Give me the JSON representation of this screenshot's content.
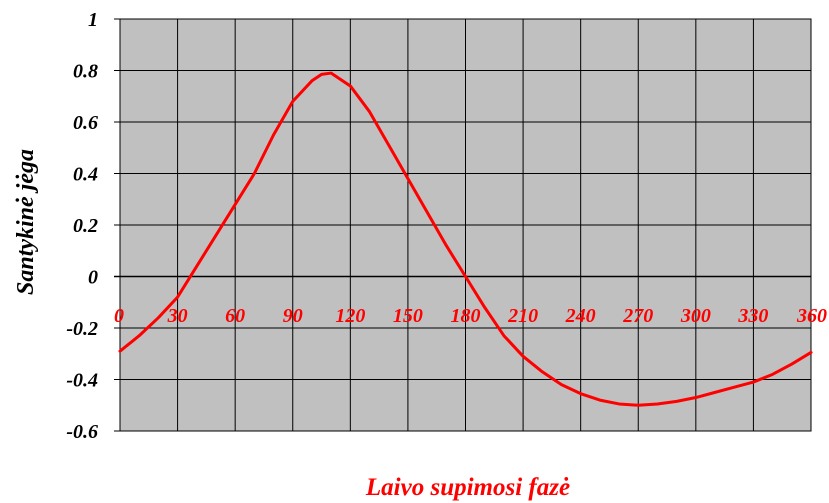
{
  "chart_data": {
    "type": "line",
    "title": "",
    "xlabel": "Laivo supimosi fazė",
    "ylabel": "Santykinė jėga",
    "xlim": [
      0,
      360
    ],
    "ylim": [
      -0.6,
      1
    ],
    "x_ticks": [
      "0",
      "30",
      "60",
      "90",
      "120",
      "150",
      "180",
      "210",
      "240",
      "270",
      "300",
      "330",
      "360"
    ],
    "y_ticks": [
      "1",
      "0.8",
      "0.6",
      "0.4",
      "0.2",
      "0",
      "-0.2",
      "-0.4",
      "-0.6"
    ],
    "x_tick_values": [
      0,
      30,
      60,
      90,
      120,
      150,
      180,
      210,
      240,
      270,
      300,
      330,
      360
    ],
    "y_tick_values": [
      1,
      0.8,
      0.6,
      0.4,
      0.2,
      0,
      -0.2,
      -0.4,
      -0.6
    ],
    "grid": true,
    "legend": "none",
    "series": [
      {
        "x": [
          0,
          10,
          20,
          30,
          40,
          50,
          60,
          70,
          80,
          90,
          100,
          105,
          110,
          120,
          130,
          140,
          150,
          160,
          170,
          180,
          190,
          200,
          210,
          220,
          230,
          240,
          250,
          260,
          270,
          280,
          290,
          300,
          310,
          320,
          330,
          340,
          350,
          360
        ],
        "y": [
          -0.29,
          -0.23,
          -0.16,
          -0.08,
          0.04,
          0.16,
          0.28,
          0.4,
          0.55,
          0.68,
          0.76,
          0.785,
          0.79,
          0.74,
          0.64,
          0.51,
          0.38,
          0.25,
          0.12,
          0.0,
          -0.12,
          -0.23,
          -0.31,
          -0.37,
          -0.42,
          -0.455,
          -0.48,
          -0.495,
          -0.5,
          -0.495,
          -0.485,
          -0.47,
          -0.45,
          -0.43,
          -0.41,
          -0.38,
          -0.34,
          -0.295
        ]
      }
    ],
    "colors": {
      "line": "#ff0000",
      "plot_background": "#c0c0c0",
      "grid": "#000000",
      "x_tick_text": "#ff0000",
      "x_label_text": "#ff0000"
    }
  }
}
